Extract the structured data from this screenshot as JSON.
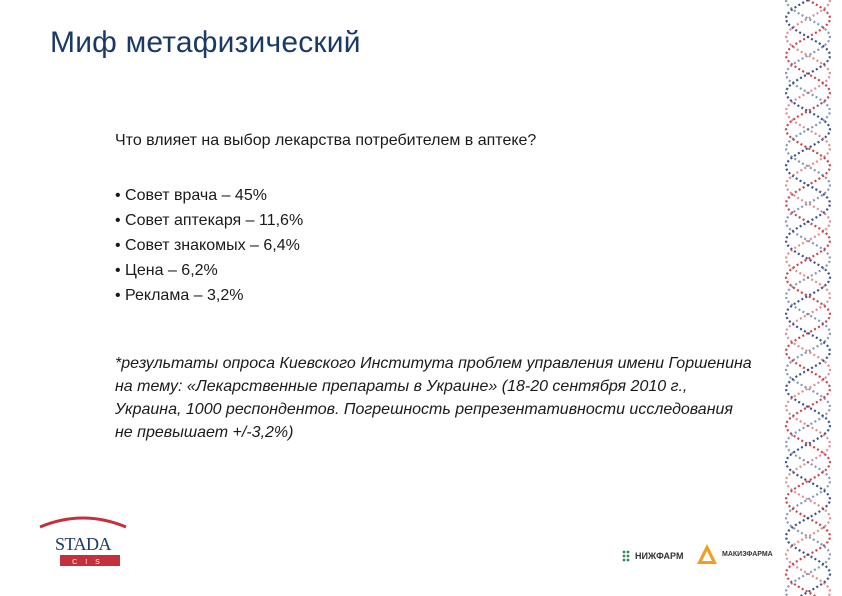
{
  "slide": {
    "title": "Миф метафизический",
    "question": "Что влияет на выбор лекарства потребителем в аптеке?",
    "bullets": [
      "Совет врача – 45%",
      "Совет аптекаря – 11,6%",
      "Совет знакомых – 6,4%",
      "Цена – 6,2%",
      "Реклама – 3,2%"
    ],
    "footnote": "*результаты опроса Киевского Института проблем управления имени Горшенина на тему: «Лекарственные препараты в Украине» (18-20 сентября 2010 г., Украина, 1000 респондентов. Погрешность репрезентативности исследования не превышает +/-3,2%)"
  },
  "logos": {
    "stada": {
      "name": "STADA",
      "sub": "C I S"
    },
    "nizhpharm": {
      "name": "НИЖФАРМ"
    },
    "makiz": {
      "name": "МАКИЗФАРМА"
    }
  },
  "colors": {
    "title": "#1a3a66",
    "dna_red": "#c4303c",
    "dna_blue": "#2a3f7a",
    "stada_red": "#c4303c"
  },
  "icons": {
    "dna_decoration": "dna-helix-icon",
    "nizhpharm_mark": "dots-mark-icon",
    "makiz_mark": "triangle-mark-icon"
  }
}
